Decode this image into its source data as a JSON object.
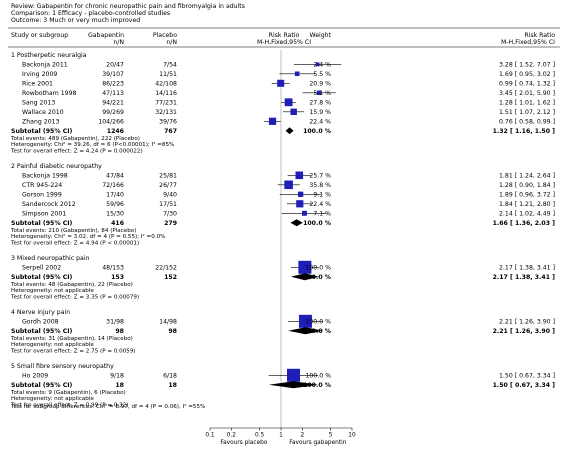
{
  "header": {
    "review": "Review:  Gabapentin for chronic neuropathic pain and fibromyalgia in adults",
    "comparison": "Comparison:  1 Efficacy - placebo-controlled studies",
    "outcome": "Outcome:  3 Much or very much improved"
  },
  "columns": {
    "study": "Study or subgroup",
    "gaba": "Gabapentin",
    "gaba_sub": "n/N",
    "placebo": "Placebo",
    "placebo_sub": "n/N",
    "rr_plot": "Risk Ratio",
    "rr_plot_sub": "M-H,Fixed,95% CI",
    "weight": "Weight",
    "rr": "Risk Ratio",
    "rr_sub": "M-H,Fixed,95% CI"
  },
  "chart_data": {
    "type": "forest",
    "x_scale": "log",
    "xlim": [
      0.1,
      10
    ],
    "ticks": [
      {
        "v": 0.1,
        "label": "0.1"
      },
      {
        "v": 0.2,
        "label": "0.2"
      },
      {
        "v": 0.5,
        "label": "0.5"
      },
      {
        "v": 1,
        "label": "1"
      },
      {
        "v": 2,
        "label": "2"
      },
      {
        "v": 5,
        "label": "5"
      },
      {
        "v": 10,
        "label": "10"
      }
    ],
    "favours_left": "Favours placebo",
    "favours_right": "Favours gabapentin",
    "subgroups": [
      {
        "title": "1 Postherpetic neuralgia",
        "studies": [
          {
            "name": "Backonja 2011",
            "gaba": "20/47",
            "placebo": "7/54",
            "weight": "2.4 %",
            "rr_text": "3.28 [ 1.52, 7.07 ]",
            "rr": 3.28,
            "lo": 1.52,
            "hi": 7.07,
            "w": 2.4
          },
          {
            "name": "Irving 2009",
            "gaba": "39/107",
            "placebo": "11/51",
            "weight": "5.5 %",
            "rr_text": "1.69 [ 0.95, 3.02 ]",
            "rr": 1.69,
            "lo": 0.95,
            "hi": 3.02,
            "w": 5.5
          },
          {
            "name": "Rice 2001",
            "gaba": "86/223",
            "placebo": "42/108",
            "weight": "20.9 %",
            "rr_text": "0.99 [ 0.74, 1.32 ]",
            "rr": 0.99,
            "lo": 0.74,
            "hi": 1.32,
            "w": 20.9
          },
          {
            "name": "Rowbotham 1998",
            "gaba": "47/113",
            "placebo": "14/116",
            "weight": "5.1 %",
            "rr_text": "3.45 [ 2.01, 5.90 ]",
            "rr": 3.45,
            "lo": 2.01,
            "hi": 5.9,
            "w": 5.1
          },
          {
            "name": "Sang 2013",
            "gaba": "94/221",
            "placebo": "77/231",
            "weight": "27.8 %",
            "rr_text": "1.28 [ 1.01, 1.62 ]",
            "rr": 1.28,
            "lo": 1.01,
            "hi": 1.62,
            "w": 27.8
          },
          {
            "name": "Wallace 2010",
            "gaba": "99/269",
            "placebo": "32/131",
            "weight": "15.9 %",
            "rr_text": "1.51 [ 1.07, 2.12 ]",
            "rr": 1.51,
            "lo": 1.07,
            "hi": 2.12,
            "w": 15.9
          },
          {
            "name": "Zhang 2013",
            "gaba": "104/266",
            "placebo": "39/76",
            "weight": "22.4 %",
            "rr_text": "0.76 [ 0.58, 0.99 ]",
            "rr": 0.76,
            "lo": 0.58,
            "hi": 0.99,
            "w": 22.4
          }
        ],
        "subtotal": {
          "label": "Subtotal (95% CI)",
          "gaba": "1246",
          "placebo": "767",
          "weight": "100.0 %",
          "rr_text": "1.32 [ 1.16, 1.50 ]",
          "rr": 1.32,
          "lo": 1.16,
          "hi": 1.5
        },
        "notes": [
          "Total events: 489 (Gabapentin), 222 (Placebo)",
          "Heterogeneity: Chi² = 39.26, df = 6 (P<0.00001); I² =85%",
          "Test for overall effect: Z = 4.24 (P = 0.000022)"
        ]
      },
      {
        "title": "2 Painful diabetic neuropathy",
        "studies": [
          {
            "name": "Backonja 1998",
            "gaba": "47/84",
            "placebo": "25/81",
            "weight": "25.7 %",
            "rr_text": "1.81 [ 1.24, 2.64 ]",
            "rr": 1.81,
            "lo": 1.24,
            "hi": 2.64,
            "w": 25.7
          },
          {
            "name": "CTR 945-224",
            "gaba": "72/166",
            "placebo": "26/77",
            "weight": "35.8 %",
            "rr_text": "1.28 [ 0.90, 1.84 ]",
            "rr": 1.28,
            "lo": 0.9,
            "hi": 1.84,
            "w": 35.8
          },
          {
            "name": "Gorson 1999",
            "gaba": "17/40",
            "placebo": "9/40",
            "weight": "9.1 %",
            "rr_text": "1.89 [ 0.96, 3.72 ]",
            "rr": 1.89,
            "lo": 0.96,
            "hi": 3.72,
            "w": 9.1
          },
          {
            "name": "Sandercock 2012",
            "gaba": "59/96",
            "placebo": "17/51",
            "weight": "22.4 %",
            "rr_text": "1.84 [ 1.21, 2.80 ]",
            "rr": 1.84,
            "lo": 1.21,
            "hi": 2.8,
            "w": 22.4
          },
          {
            "name": "Simpson 2001",
            "gaba": "15/30",
            "placebo": "7/30",
            "weight": "7.1 %",
            "rr_text": "2.14 [ 1.02, 4.49 ]",
            "rr": 2.14,
            "lo": 1.02,
            "hi": 4.49,
            "w": 7.1
          }
        ],
        "subtotal": {
          "label": "Subtotal (95% CI)",
          "gaba": "416",
          "placebo": "279",
          "weight": "100.0 %",
          "rr_text": "1.66 [ 1.36, 2.03 ]",
          "rr": 1.66,
          "lo": 1.36,
          "hi": 2.03
        },
        "notes": [
          "Total events: 210 (Gabapentin), 84 (Placebo)",
          "Heterogeneity: Chi² = 3.02, df = 4 (P = 0.55); I² =0.0%",
          "Test for overall effect: Z = 4.94 (P < 0.00001)"
        ]
      },
      {
        "title": "3 Mixed neuropathic pain",
        "studies": [
          {
            "name": "Serpell 2002",
            "gaba": "48/153",
            "placebo": "22/152",
            "weight": "100.0 %",
            "rr_text": "2.17 [ 1.38, 3.41 ]",
            "rr": 2.17,
            "lo": 1.38,
            "hi": 3.41,
            "w": 100
          }
        ],
        "subtotal": {
          "label": "Subtotal (95% CI)",
          "gaba": "153",
          "placebo": "152",
          "weight": "100.0 %",
          "rr_text": "2.17 [ 1.38, 3.41 ]",
          "rr": 2.17,
          "lo": 1.38,
          "hi": 3.41
        },
        "notes": [
          "Total events: 48 (Gabapentin), 22 (Placebo)",
          "Heterogeneity: not applicable",
          "Test for overall effect: Z = 3.35 (P = 0.00079)"
        ]
      },
      {
        "title": "4 Nerve injury pain",
        "studies": [
          {
            "name": "Gordh 2008",
            "gaba": "31/98",
            "placebo": "14/98",
            "weight": "100.0 %",
            "rr_text": "2.21 [ 1.26, 3.90 ]",
            "rr": 2.21,
            "lo": 1.26,
            "hi": 3.9,
            "w": 100
          }
        ],
        "subtotal": {
          "label": "Subtotal (95% CI)",
          "gaba": "98",
          "placebo": "98",
          "weight": "100.0 %",
          "rr_text": "2.21 [ 1.26, 3.90 ]",
          "rr": 2.21,
          "lo": 1.26,
          "hi": 3.9
        },
        "notes": [
          "Total events: 31 (Gabapentin), 14 (Placebo)",
          "Heterogeneity: not applicable",
          "Test for overall effect: Z = 2.75 (P = 0.0059)"
        ]
      },
      {
        "title": "5 Small fibre sensory neuropathy",
        "studies": [
          {
            "name": "Ho 2009",
            "gaba": "9/18",
            "placebo": "6/18",
            "weight": "100.0 %",
            "rr_text": "1.50 [ 0.67, 3.34 ]",
            "rr": 1.5,
            "lo": 0.67,
            "hi": 3.34,
            "w": 100
          }
        ],
        "subtotal": {
          "label": "Subtotal (95% CI)",
          "gaba": "18",
          "placebo": "18",
          "weight": "100.0 %",
          "rr_text": "1.50 [ 0.67, 3.34 ]",
          "rr": 1.5,
          "lo": 0.67,
          "hi": 3.34
        },
        "notes": [
          "Total events: 9 (Gabapentin), 6 (Placebo)",
          "Heterogeneity: not applicable",
          "Test for overall effect: Z = 0.99 (P = 0.32)"
        ]
      }
    ],
    "subgroup_test": "Test for subgroup differences: Chi² = 8.97, df = 4 (P = 0.06), I² =55%",
    "colors": {
      "box": "#1f1fb8",
      "line": "#000000",
      "axis": "#999999"
    }
  }
}
